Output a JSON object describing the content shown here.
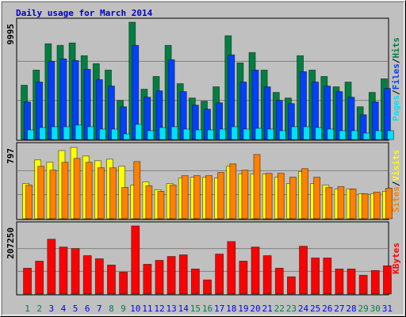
{
  "title": "Daily usage for March 2014",
  "legend_separator": "/",
  "chart_data": [
    {
      "type": "bar",
      "ylim": [
        0,
        9995
      ],
      "yticks": [
        9995
      ],
      "series": [
        {
          "name": "Pages",
          "color": "#00e0ff",
          "values": [
            816,
            1020,
            1088,
            1088,
            1224,
            1088,
            884,
            884,
            476,
            1292,
            748,
            1020,
            1088,
            884,
            816,
            816,
            884,
            1088,
            884,
            952,
            884,
            748,
            1088,
            1088,
            1020,
            884,
            748,
            748,
            544,
            748,
            748
          ]
        },
        {
          "name": "Files",
          "color": "#0040ff",
          "values": [
            3196,
            4896,
            6664,
            6868,
            6732,
            5984,
            5100,
            4556,
            2788,
            8024,
            3604,
            4148,
            6800,
            4080,
            2924,
            2584,
            3128,
            7208,
            4896,
            5916,
            4488,
            3332,
            3060,
            5780,
            4896,
            4556,
            4080,
            3604,
            2108,
            3196,
            4352
          ]
        },
        {
          "name": "Hits",
          "color": "#008040",
          "values": [
            4624,
            5916,
            8160,
            8024,
            8228,
            7140,
            6460,
            5916,
            3332,
            9995,
            4284,
            5372,
            8024,
            4760,
            3536,
            3264,
            4488,
            8840,
            6528,
            7412,
            5916,
            4012,
            3536,
            7140,
            5916,
            5372,
            4488,
            4896,
            2788,
            4012,
            5168
          ]
        }
      ]
    },
    {
      "type": "bar",
      "ylim": [
        0,
        797
      ],
      "yticks": [
        797
      ],
      "series": [
        {
          "name": "Sites",
          "color": "#ff8000",
          "values": [
            372,
            580,
            537,
            624,
            667,
            624,
            563,
            563,
            346,
            632,
            364,
            303,
            372,
            476,
            476,
            476,
            511,
            606,
            537,
            710,
            502,
            502,
            459,
            554,
            459,
            346,
            355,
            329,
            277,
            294,
            338
          ]
        },
        {
          "name": "Visits",
          "color": "#ffff00",
          "values": [
            390,
            650,
            624,
            753,
            788,
            693,
            641,
            658,
            580,
            372,
            407,
            320,
            390,
            450,
            459,
            459,
            450,
            580,
            494,
            494,
            494,
            459,
            390,
            520,
            390,
            372,
            329,
            329,
            277,
            277,
            303
          ]
        }
      ]
    },
    {
      "type": "bar",
      "ylim": [
        0,
        207250
      ],
      "yticks": [
        207250
      ],
      "categories": [
        "1",
        "2",
        "3",
        "4",
        "5",
        "6",
        "7",
        "8",
        "9",
        "10",
        "11",
        "12",
        "13",
        "14",
        "15",
        "16",
        "17",
        "18",
        "19",
        "20",
        "21",
        "22",
        "23",
        "24",
        "25",
        "26",
        "27",
        "28",
        "29",
        "30",
        "31"
      ],
      "category_colors": [
        "#008040",
        "#008040",
        "#0000ff",
        "#0000ff",
        "#0000ff",
        "#0000ff",
        "#0000ff",
        "#008040",
        "#008040",
        "#0000ff",
        "#0000ff",
        "#0000ff",
        "#0000ff",
        "#0000ff",
        "#008040",
        "#008040",
        "#0000ff",
        "#0000ff",
        "#0000ff",
        "#0000ff",
        "#0000ff",
        "#008040",
        "#008040",
        "#0000ff",
        "#0000ff",
        "#0000ff",
        "#0000ff",
        "#0000ff",
        "#008040",
        "#008040",
        "#0000ff"
      ],
      "series": [
        {
          "name": "KBytes",
          "color": "#ff0000",
          "values": [
            78600,
            100000,
            166700,
            142900,
            138200,
            116700,
            107200,
            88100,
            66700,
            207250,
            90500,
            102400,
            114300,
            119100,
            76200,
            42900,
            121500,
            159600,
            100000,
            142900,
            116700,
            78600,
            52400,
            145300,
            109600,
            109600,
            76200,
            76200,
            57200,
            71500,
            85800
          ]
        }
      ]
    }
  ]
}
